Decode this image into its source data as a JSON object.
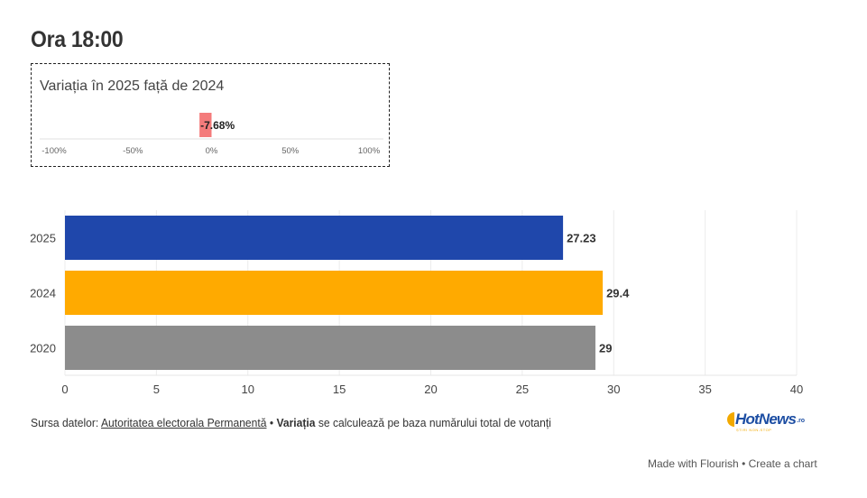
{
  "title": "Ora 18:00",
  "variation": {
    "title": "Variația în 2025 față de 2024",
    "value": -7.68,
    "label": "-7.68%",
    "axis_ticks": [
      "-100%",
      "-50%",
      "0%",
      "50%",
      "100%"
    ],
    "axis_range": [
      -100,
      100
    ],
    "color": "#f47b7b"
  },
  "chart_data": {
    "type": "bar",
    "orientation": "horizontal",
    "title": "Ora 18:00",
    "categories": [
      "2025",
      "2024",
      "2020"
    ],
    "values": [
      27.23,
      29.4,
      29
    ],
    "value_labels": [
      "27.23",
      "29.4",
      "29"
    ],
    "colors": [
      "#1f47ab",
      "#ffaa00",
      "#8c8c8c"
    ],
    "xlim": [
      0,
      40
    ],
    "xticks": [
      "0",
      "5",
      "10",
      "15",
      "20",
      "25",
      "30",
      "35",
      "40"
    ],
    "xlabel": "",
    "ylabel": "",
    "grid": true
  },
  "footer": {
    "source_prefix": "Sursa datelor:",
    "source_link": "Autoritatea electorala Permanentă",
    "separator": "•",
    "bold_term": "Variația",
    "note": "se calculează pe baza numărului total de votanți",
    "logo_word": "HotNews",
    "logo_tld": ".ro",
    "logo_tagline": "ȘTIRI NON-STOP",
    "made_with": "Made with Flourish",
    "dot": "•",
    "create": "Create a chart"
  }
}
